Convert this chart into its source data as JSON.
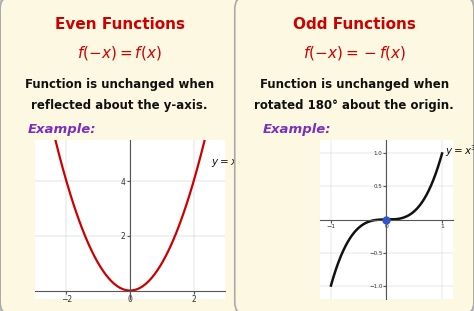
{
  "bg_color": "#fdf8e1",
  "outer_bg": "#b8cdd8",
  "title_even": "Even Functions",
  "title_odd": "Odd Functions",
  "title_color": "#cc0000",
  "formula_color": "#cc0000",
  "desc_even_line1": "Function is unchanged when",
  "desc_even_line2": "reflected about the y-axis.",
  "desc_odd_line1": "Function is unchanged when",
  "desc_odd_line2": "rotated 180° about the origin.",
  "desc_color": "#111111",
  "example_label": "Example:",
  "example_color": "#7b2fbe",
  "curve_even_color": "#cc0000",
  "curve_odd_color": "#111111",
  "dot_color": "#3355cc",
  "label_color": "#111111",
  "grid_color": "#bbbbbb",
  "axis_color": "#555555"
}
